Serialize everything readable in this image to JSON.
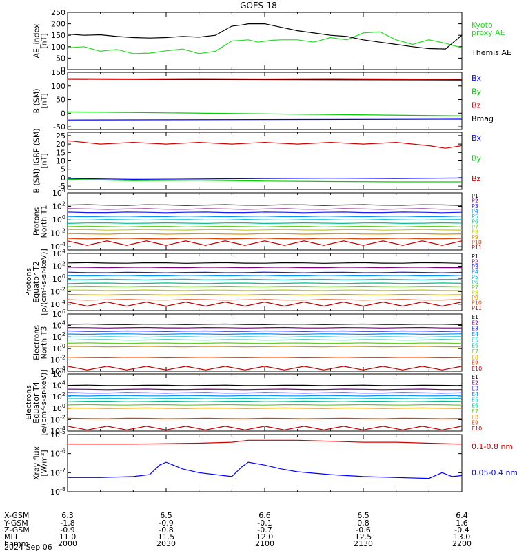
{
  "title": "GOES-18",
  "colors": {
    "black": "#000000",
    "blue": "#0000ff",
    "green": "#00d200",
    "red": "#d20000",
    "kyoto": "#22dd22",
    "p1": "#000000",
    "p2": "#7a0080",
    "p3": "#1a1aff",
    "p4": "#0090ff",
    "p5": "#00c8e0",
    "p6": "#00c090",
    "p7": "#60d020",
    "p8": "#c0d000",
    "p9": "#e09000",
    "p10": "#e04000",
    "p11": "#c00000"
  },
  "x_ticks": [
    "2000",
    "2030",
    "2100",
    "2130",
    "2200"
  ],
  "footer": {
    "rows": [
      {
        "label": "X-GSM",
        "values": [
          "6.3",
          "6.5",
          "6.6",
          "6.5",
          "6.4"
        ]
      },
      {
        "label": "Y-GSM",
        "values": [
          "-1.8",
          "-0.9",
          "-0.1",
          "0.8",
          "1.6"
        ]
      },
      {
        "label": "Z-GSM",
        "values": [
          "-0.9",
          "-0.8",
          "-0.7",
          "-0.6",
          "-0.4"
        ]
      },
      {
        "label": "MLT",
        "values": [
          "11.0",
          "11.5",
          "12.0",
          "12.5",
          "13.0"
        ]
      },
      {
        "label": "hhmm",
        "values": [
          "2000",
          "2030",
          "2100",
          "2130",
          "2200"
        ]
      }
    ],
    "date": "2024 Sep 06"
  },
  "chart_data": [
    {
      "type": "line",
      "ylabel": "AE_index\n[nT]",
      "ylim": [
        0,
        250
      ],
      "yticks": [
        "0",
        "50",
        "100",
        "150",
        "200",
        "250"
      ],
      "legend": [
        "Kyoto\nproxy AE",
        "Themis AE"
      ],
      "series": [
        {
          "name": "Kyoto proxy AE",
          "color": "#22dd22",
          "x": [
            0,
            5,
            10,
            15,
            20,
            25,
            30,
            35,
            40,
            45,
            50,
            55,
            58,
            62,
            65,
            70,
            75,
            80,
            85,
            90,
            95,
            100,
            105,
            110,
            115,
            120
          ],
          "y": [
            95,
            100,
            80,
            88,
            70,
            72,
            82,
            90,
            70,
            80,
            125,
            130,
            120,
            128,
            130,
            130,
            120,
            140,
            130,
            160,
            165,
            130,
            110,
            130,
            115,
            95
          ]
        },
        {
          "name": "Themis AE",
          "color": "#000000",
          "x": [
            0,
            5,
            10,
            15,
            20,
            25,
            30,
            35,
            40,
            45,
            50,
            53,
            55,
            60,
            65,
            70,
            75,
            80,
            85,
            90,
            95,
            100,
            105,
            110,
            115,
            120
          ],
          "y": [
            155,
            150,
            152,
            145,
            140,
            138,
            140,
            145,
            142,
            150,
            190,
            195,
            200,
            200,
            185,
            170,
            160,
            150,
            145,
            130,
            120,
            110,
            100,
            92,
            90,
            150
          ]
        }
      ]
    },
    {
      "type": "line",
      "ylabel": "B (SM)\n[nT]",
      "ylim": [
        -60,
        150
      ],
      "yticks": [
        "-50",
        "0",
        "50",
        "100",
        "150"
      ],
      "legend": [
        "Bx",
        "By",
        "Bz",
        "Bmag"
      ],
      "series": [
        {
          "name": "Bmag",
          "color": "#000000",
          "x": [
            0,
            120
          ],
          "y": [
            125,
            122
          ]
        },
        {
          "name": "Bz",
          "color": "#d20000",
          "x": [
            0,
            20,
            40,
            60,
            80,
            100,
            120
          ],
          "y": [
            127,
            126,
            127,
            126,
            127,
            126,
            125
          ]
        },
        {
          "name": "By",
          "color": "#00d200",
          "x": [
            0,
            120
          ],
          "y": [
            5,
            -10
          ]
        },
        {
          "name": "Bx",
          "color": "#0000ff",
          "x": [
            0,
            120
          ],
          "y": [
            -25,
            -22
          ]
        }
      ]
    },
    {
      "type": "line",
      "ylabel": "B (SM)-IGRF (SM)\n[nT]",
      "ylim": [
        -7,
        27
      ],
      "yticks": [
        "-5",
        "0",
        "5",
        "10",
        "15",
        "20",
        "25"
      ],
      "legend": [
        "Bx",
        "By",
        "Bz"
      ],
      "series": [
        {
          "name": "Bz",
          "color": "#d20000",
          "x": [
            0,
            10,
            20,
            30,
            40,
            50,
            60,
            70,
            80,
            90,
            100,
            110,
            115,
            120
          ],
          "y": [
            22,
            20,
            21,
            20,
            21,
            20,
            21,
            20,
            21,
            20,
            21,
            19,
            17.5,
            19
          ]
        },
        {
          "name": "Bx",
          "color": "#0000ff",
          "x": [
            0,
            20,
            40,
            60,
            80,
            100,
            120
          ],
          "y": [
            -0.5,
            -1,
            -0.8,
            -0.5,
            -0.3,
            -0.5,
            -0.2
          ]
        },
        {
          "name": "By",
          "color": "#00d200",
          "x": [
            0,
            20,
            40,
            60,
            80,
            100,
            120
          ],
          "y": [
            -1,
            -1.8,
            -1.5,
            -2,
            -2.3,
            -2.5,
            -2.5
          ]
        }
      ]
    },
    {
      "type": "line",
      "ylabel": "Protons\nNorth T1",
      "log": true,
      "ylim_exp": [
        -4.5,
        4
      ],
      "yticks_exp": [
        -4,
        -2,
        0,
        2,
        4
      ],
      "legend": [
        "P1",
        "P2",
        "P3",
        "P4",
        "P5",
        "P6",
        "P7",
        "P8",
        "P9",
        "P10",
        "P11"
      ],
      "levels_exp": [
        2.2,
        1.6,
        1.1,
        0.5,
        0.0,
        -0.5,
        -1.0,
        -1.5,
        -2.1,
        -2.8,
        -3.5
      ],
      "noisy_last": true
    },
    {
      "type": "line",
      "ylabel": "Protons\nEquator T2\n[p/(cm²-s-sr-keV)]",
      "log": true,
      "ylim_exp": [
        -5,
        4
      ],
      "yticks_exp": [
        -4,
        -2,
        0,
        2,
        4
      ],
      "legend": [
        "P1",
        "P2",
        "P3",
        "P4",
        "P5",
        "P6",
        "P7",
        "P8",
        "P9",
        "P10",
        "P11"
      ],
      "levels_exp": [
        2.5,
        1.8,
        1.0,
        0.5,
        -0.1,
        -0.7,
        -1.2,
        -1.8,
        -2.5,
        -3.3,
        -4.0
      ],
      "noisy_last": true
    },
    {
      "type": "line",
      "ylabel": "Electrons\nNorth T3",
      "log": true,
      "ylim_exp": [
        -4,
        6
      ],
      "yticks_exp": [
        -4,
        -2,
        0,
        2,
        4,
        6
      ],
      "legend": [
        "E1",
        "E2",
        "E3",
        "E4",
        "E5",
        "E6",
        "E7",
        "E8",
        "E9",
        "E10"
      ],
      "levels_exp": [
        4.2,
        3.6,
        3.0,
        2.5,
        2.0,
        1.5,
        0.9,
        0.3,
        -1.6,
        -3.5
      ],
      "noisy_last": true
    },
    {
      "type": "line",
      "ylabel": "Electrons\nEquator T4\n[e/(cm²-s-sr-keV)]",
      "log": true,
      "ylim_exp": [
        -4,
        6
      ],
      "yticks_exp": [
        -4,
        -2,
        0,
        2,
        4,
        6
      ],
      "legend": [
        "E1",
        "E2",
        "E3",
        "E4",
        "E5",
        "E6",
        "E7",
        "E8",
        "E9",
        "E10"
      ],
      "levels_exp": [
        4.0,
        3.3,
        2.7,
        2.2,
        1.7,
        1.2,
        0.6,
        0.0,
        -1.8,
        -3.5
      ],
      "noisy_last": true
    },
    {
      "type": "line",
      "ylabel": "Xray flux\n[W/m²]",
      "log": true,
      "ylim_exp": [
        -8,
        -5
      ],
      "yticks_exp": [
        -8,
        -7,
        -6,
        -5
      ],
      "legend": [
        "0.1-0.8 nm",
        "0.05-0.4 nm"
      ],
      "series": [
        {
          "name": "0.1-0.8 nm",
          "color": "#d20000",
          "x": [
            0,
            20,
            40,
            50,
            55,
            60,
            70,
            80,
            90,
            100,
            110,
            120
          ],
          "y": [
            -5.5,
            -5.5,
            -5.45,
            -5.4,
            -5.3,
            -5.3,
            -5.3,
            -5.35,
            -5.4,
            -5.4,
            -5.45,
            -5.5
          ]
        },
        {
          "name": "0.05-0.4 nm",
          "color": "#0000ff",
          "x": [
            0,
            10,
            20,
            25,
            28,
            30,
            35,
            40,
            45,
            50,
            53,
            55,
            60,
            65,
            70,
            80,
            90,
            100,
            110,
            114,
            117,
            120
          ],
          "y": [
            -7.25,
            -7.25,
            -7.2,
            -7.1,
            -6.6,
            -6.45,
            -6.8,
            -7.0,
            -7.1,
            -7.2,
            -6.7,
            -6.45,
            -6.6,
            -6.8,
            -6.95,
            -7.1,
            -7.2,
            -7.25,
            -7.3,
            -7.0,
            -7.2,
            -7.15
          ]
        }
      ]
    }
  ]
}
